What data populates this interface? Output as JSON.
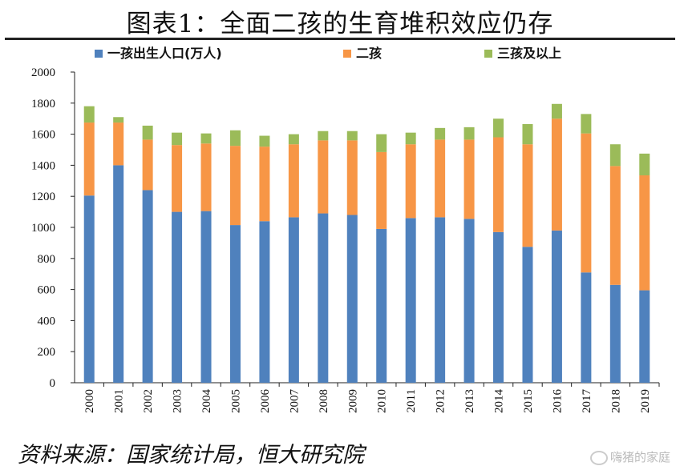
{
  "title": "图表1：全面二孩的生育堆积效应仍存",
  "source": "资料来源：国家统计局，恒大研究院",
  "watermark": "嗨猪的家庭",
  "chart_data": {
    "type": "bar",
    "stacked": true,
    "categories": [
      "2000",
      "2001",
      "2002",
      "2003",
      "2004",
      "2005",
      "2006",
      "2007",
      "2008",
      "2009",
      "2010",
      "2011",
      "2012",
      "2013",
      "2014",
      "2015",
      "2016",
      "2017",
      "2018",
      "2019"
    ],
    "series": [
      {
        "name": "一孩出生人口(万人)",
        "color": "#4f81bd",
        "values": [
          1205,
          1400,
          1240,
          1100,
          1105,
          1015,
          1040,
          1065,
          1090,
          1080,
          990,
          1060,
          1065,
          1055,
          970,
          875,
          980,
          710,
          630,
          595
        ]
      },
      {
        "name": "二孩",
        "color": "#f79646",
        "values": [
          470,
          275,
          325,
          430,
          435,
          510,
          480,
          470,
          470,
          480,
          495,
          475,
          500,
          510,
          610,
          660,
          720,
          895,
          765,
          740
        ]
      },
      {
        "name": "三孩及以上",
        "color": "#9bbb59",
        "values": [
          105,
          35,
          90,
          80,
          65,
          100,
          70,
          65,
          60,
          60,
          115,
          75,
          75,
          80,
          120,
          130,
          95,
          125,
          140,
          140
        ]
      }
    ],
    "ylim": [
      0,
      2000
    ],
    "yticks": [
      0,
      200,
      400,
      600,
      800,
      1000,
      1200,
      1400,
      1600,
      1800,
      2000
    ],
    "grid": false,
    "legend": "top"
  }
}
